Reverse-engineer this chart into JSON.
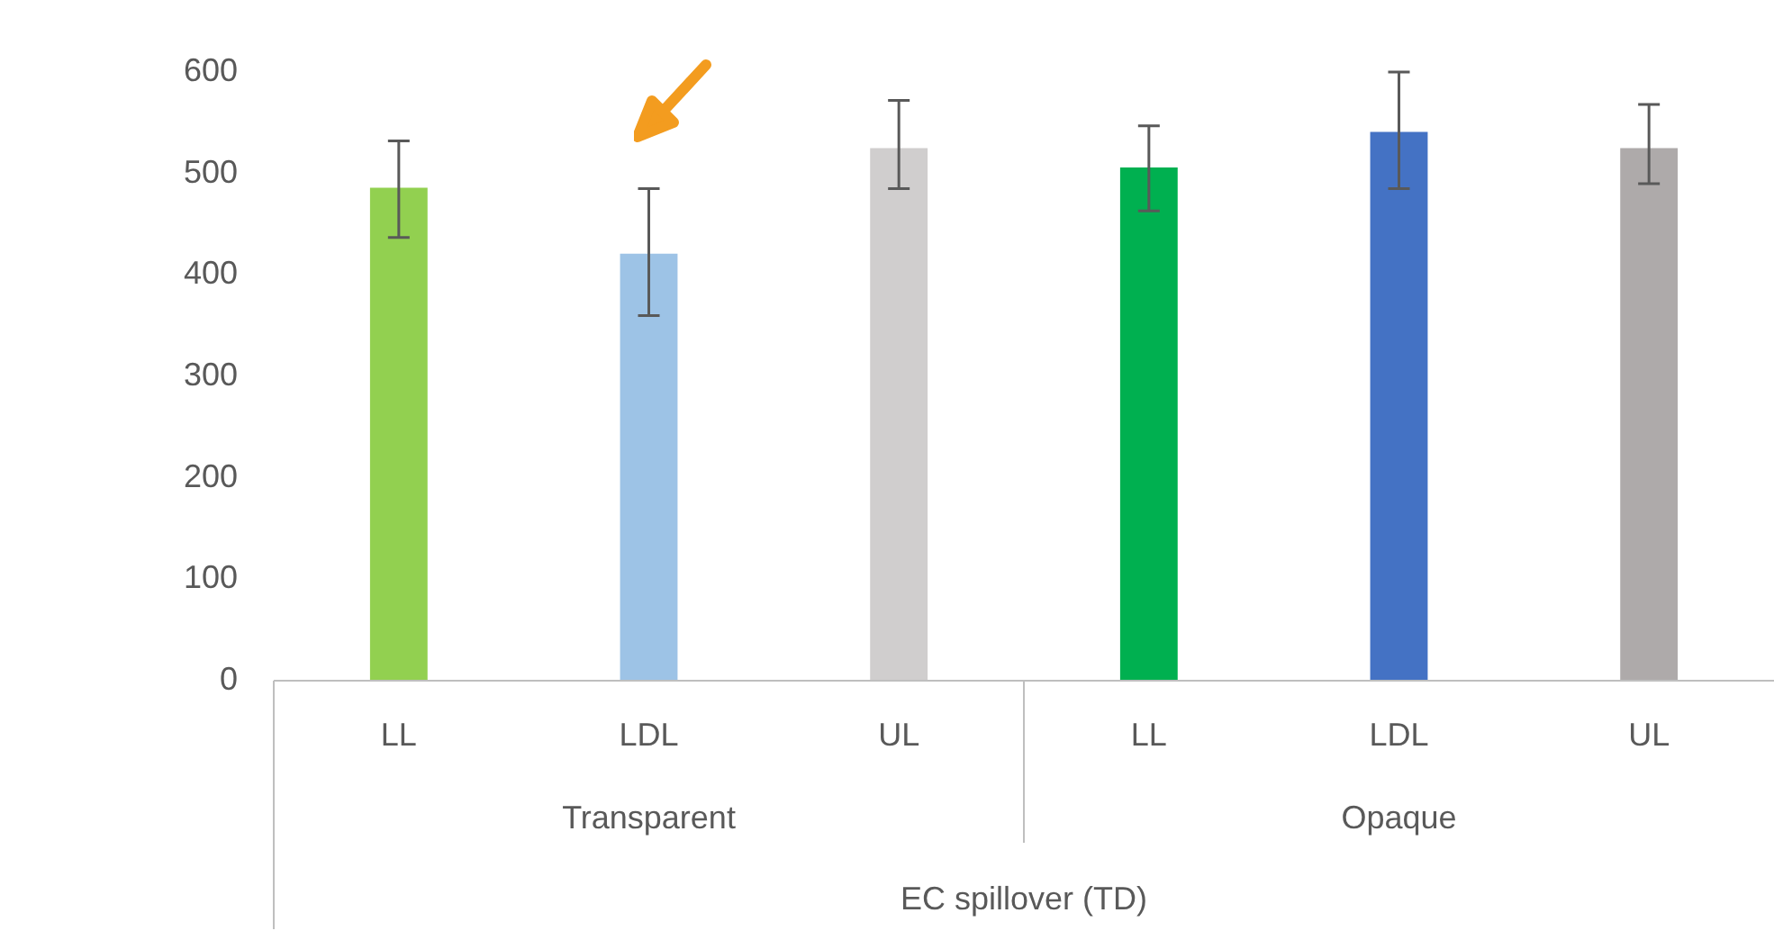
{
  "chart_data": {
    "type": "bar",
    "categories": [
      "LL",
      "LDL",
      "UL",
      "LL",
      "LDL",
      "UL"
    ],
    "values": [
      486,
      421,
      525,
      506,
      541,
      525
    ],
    "colors": [
      "#92d050",
      "#9dc3e6",
      "#d0cece",
      "#00b050",
      "#4472c4",
      "#aeaaaa"
    ],
    "errors": [
      [
        437,
        532
      ],
      [
        360,
        485
      ],
      [
        485,
        572
      ],
      [
        463,
        547
      ],
      [
        485,
        600
      ],
      [
        490,
        568
      ]
    ],
    "xlabel": "EC spillover (TD)",
    "annotations": [
      "Transparent",
      "Opaque"
    ],
    "ylim": [
      0,
      600
    ],
    "yticks": [
      0,
      100,
      200,
      300,
      400,
      500,
      600
    ],
    "grid": false,
    "legend": false
  }
}
